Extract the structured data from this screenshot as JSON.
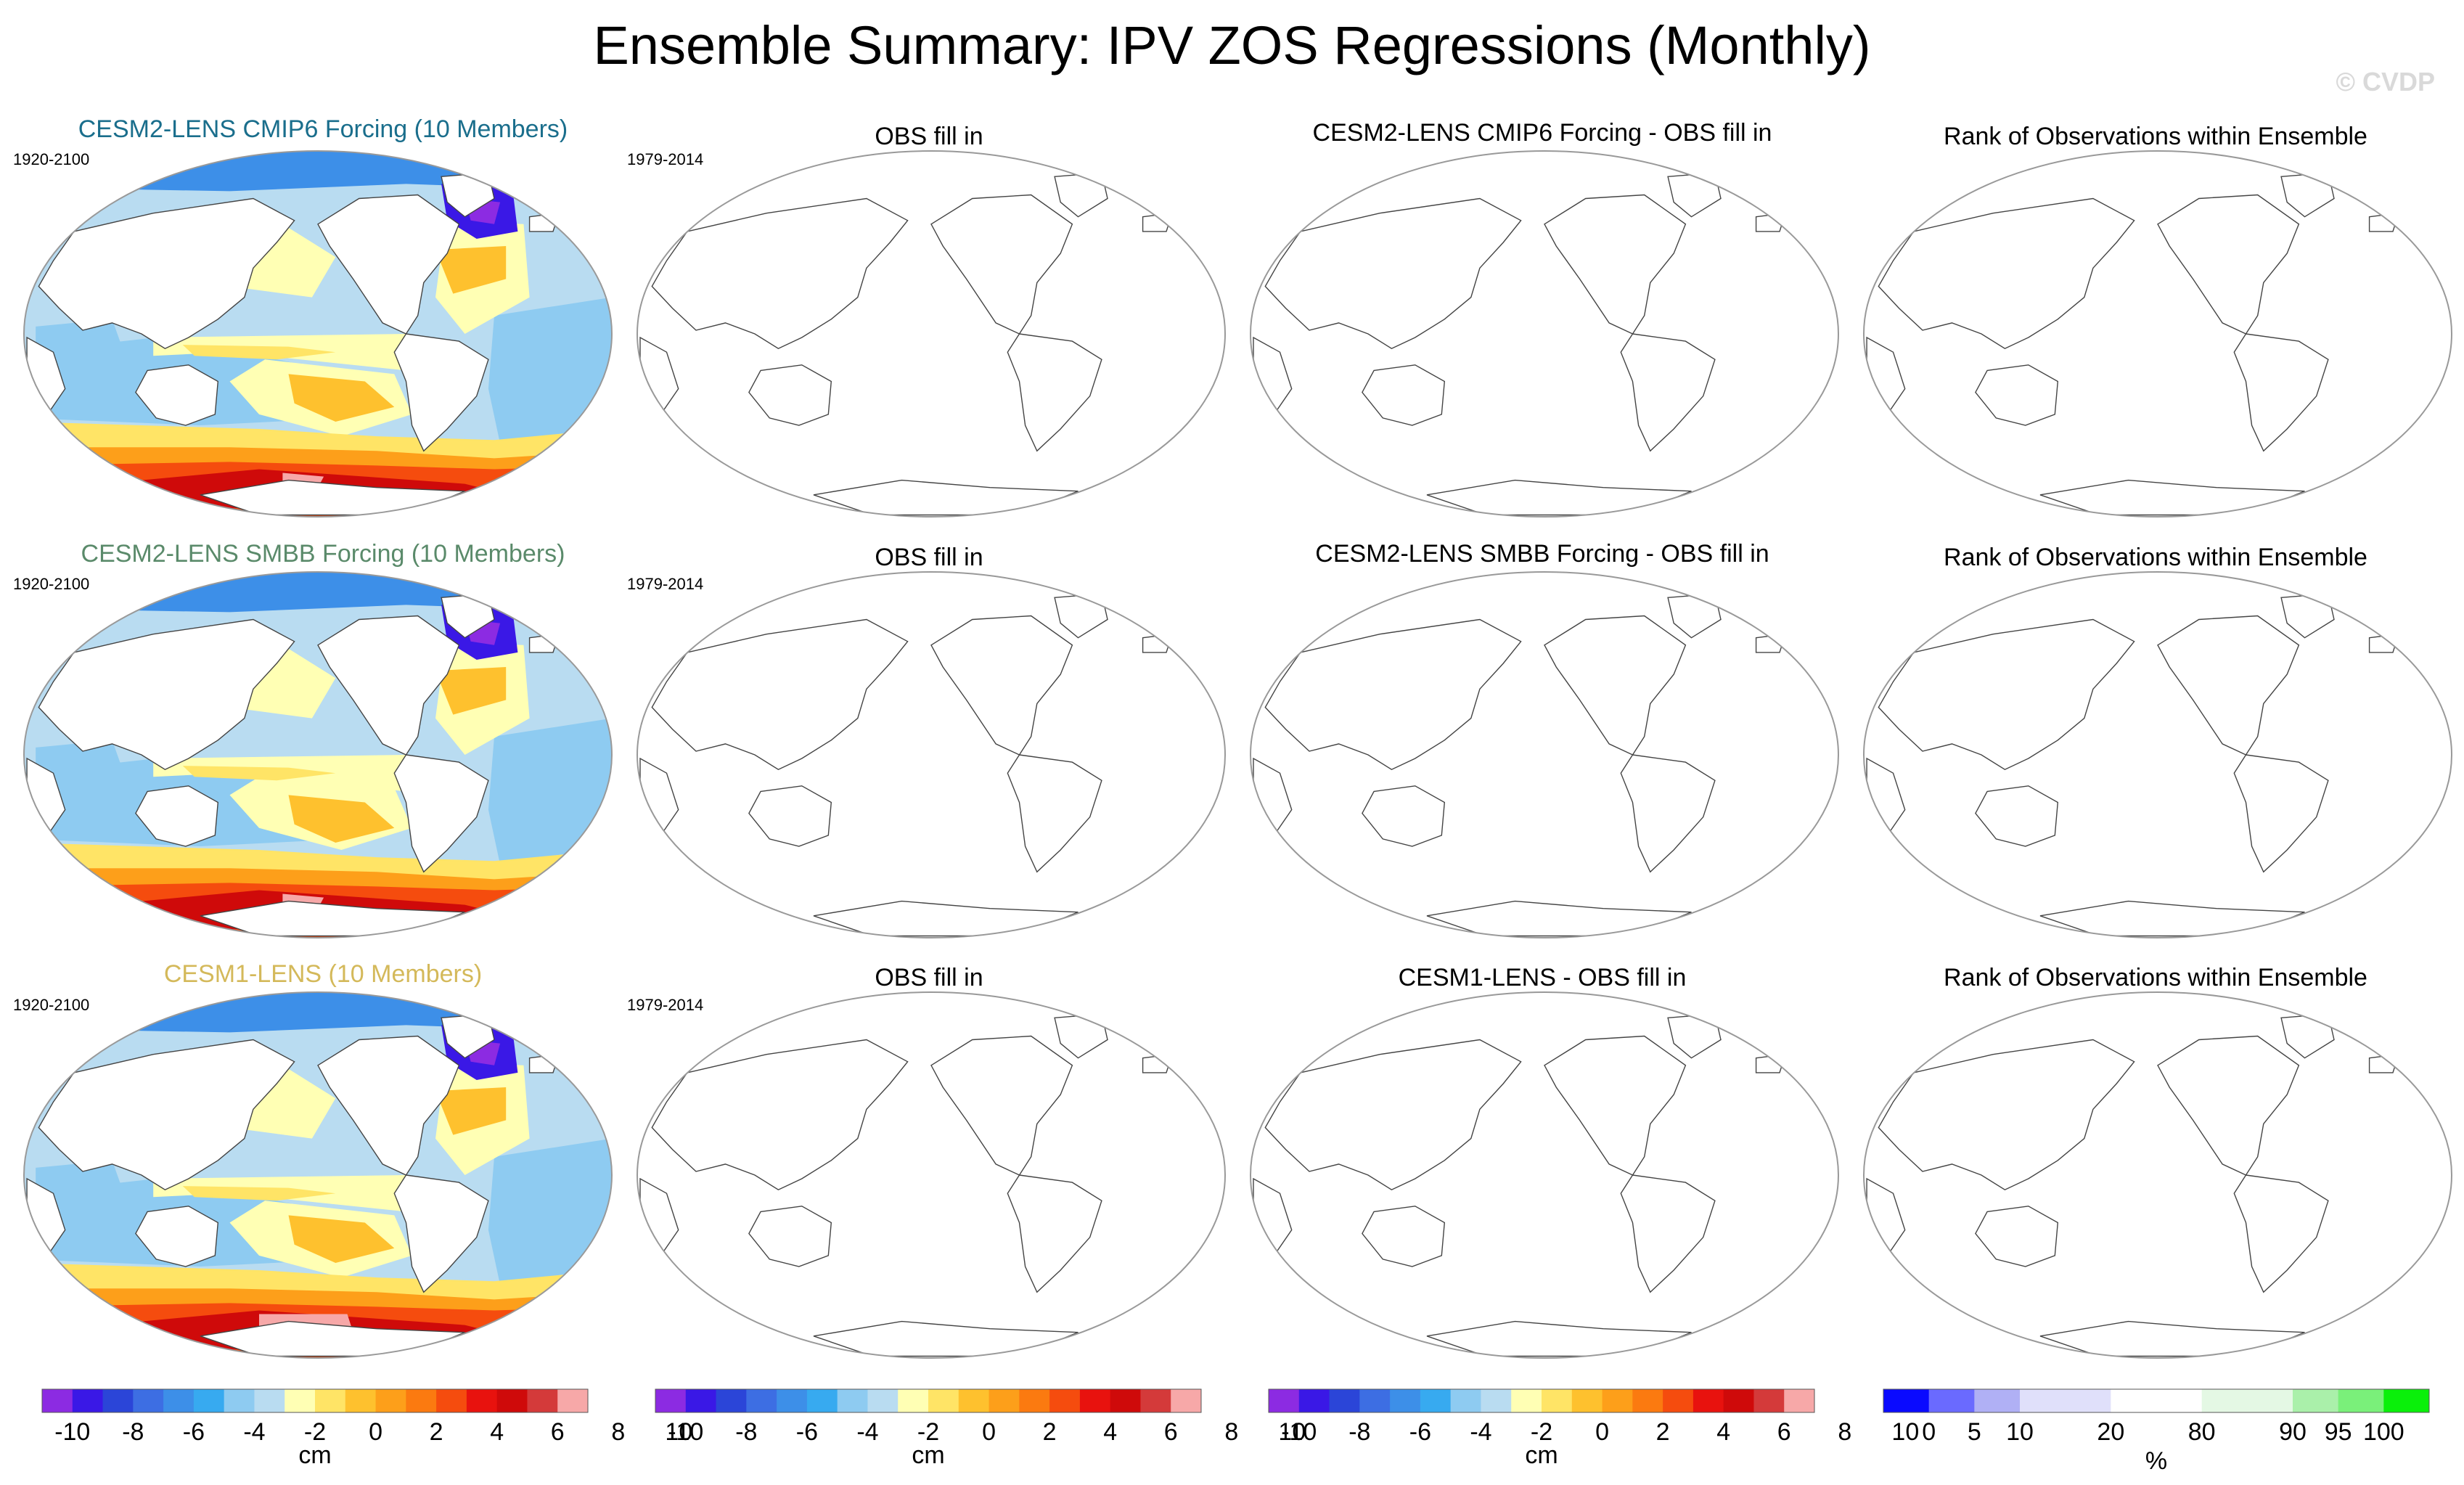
{
  "figure": {
    "title": "Ensemble Summary: IPV ZOS Regressions (Monthly)",
    "watermark": "© CVDP"
  },
  "chart_data": [
    {
      "type": "map",
      "row": 0,
      "col": 0,
      "title": "CESM2-LENS CMIP6 Forcing (10 Members)",
      "title_color": "#1a6e8c",
      "period": "1920-2100",
      "filled": true,
      "variant": 0
    },
    {
      "type": "map",
      "row": 0,
      "col": 1,
      "title": "OBS fill in",
      "period": "1979-2014",
      "filled": false
    },
    {
      "type": "map",
      "row": 0,
      "col": 2,
      "title": "CESM2-LENS CMIP6 Forcing - OBS fill in",
      "period": "",
      "filled": false
    },
    {
      "type": "map",
      "row": 0,
      "col": 3,
      "title": "Rank of Observations within Ensemble",
      "period": "",
      "filled": false
    },
    {
      "type": "map",
      "row": 1,
      "col": 0,
      "title": "CESM2-LENS SMBB Forcing (10 Members)",
      "title_color": "#5a8a6a",
      "period": "1920-2100",
      "filled": true,
      "variant": 1
    },
    {
      "type": "map",
      "row": 1,
      "col": 1,
      "title": "OBS fill in",
      "period": "1979-2014",
      "filled": false
    },
    {
      "type": "map",
      "row": 1,
      "col": 2,
      "title": "CESM2-LENS SMBB Forcing - OBS fill in",
      "period": "",
      "filled": false
    },
    {
      "type": "map",
      "row": 1,
      "col": 3,
      "title": "Rank of Observations within Ensemble",
      "period": "",
      "filled": false
    },
    {
      "type": "map",
      "row": 2,
      "col": 0,
      "title": "CESM1-LENS (10 Members)",
      "title_color": "#d4b95a",
      "period": "1920-2100",
      "filled": true,
      "variant": 2
    },
    {
      "type": "map",
      "row": 2,
      "col": 1,
      "title": "OBS fill in",
      "period": "1979-2014",
      "filled": false
    },
    {
      "type": "map",
      "row": 2,
      "col": 2,
      "title": "CESM1-LENS - OBS fill in",
      "period": "",
      "filled": false
    },
    {
      "type": "map",
      "row": 2,
      "col": 3,
      "title": "Rank of Observations within Ensemble",
      "period": "",
      "filled": false
    }
  ],
  "colorbars": [
    {
      "unit": "cm",
      "colors": [
        "#8c2be2",
        "#3a18e6",
        "#2b45d8",
        "#3d6ee3",
        "#3d8fe8",
        "#37aaf0",
        "#8ecbf1",
        "#b9dcf1",
        "#ffffb4",
        "#ffe466",
        "#fec12e",
        "#fd9f1a",
        "#fb7a10",
        "#f54c0e",
        "#e8120e",
        "#cf0a0a",
        "#d43a3a",
        "#f7a8a8"
      ],
      "ticks": [
        "-10",
        "-8",
        "-6",
        "-4",
        "-2",
        "0",
        "2",
        "4",
        "6",
        "8",
        "10"
      ]
    },
    {
      "unit": "cm",
      "colors": [
        "#8c2be2",
        "#3a18e6",
        "#2b45d8",
        "#3d6ee3",
        "#3d8fe8",
        "#37aaf0",
        "#8ecbf1",
        "#b9dcf1",
        "#ffffb4",
        "#ffe466",
        "#fec12e",
        "#fd9f1a",
        "#fb7a10",
        "#f54c0e",
        "#e8120e",
        "#cf0a0a",
        "#d43a3a",
        "#f7a8a8"
      ],
      "ticks": [
        "-10",
        "-8",
        "-6",
        "-4",
        "-2",
        "0",
        "2",
        "4",
        "6",
        "8",
        "10"
      ]
    },
    {
      "unit": "cm",
      "colors": [
        "#8c2be2",
        "#3a18e6",
        "#2b45d8",
        "#3d6ee3",
        "#3d8fe8",
        "#37aaf0",
        "#8ecbf1",
        "#b9dcf1",
        "#ffffb4",
        "#ffe466",
        "#fec12e",
        "#fd9f1a",
        "#fb7a10",
        "#f54c0e",
        "#e8120e",
        "#cf0a0a",
        "#d43a3a",
        "#f7a8a8"
      ],
      "ticks": [
        "-10",
        "-8",
        "-6",
        "-4",
        "-2",
        "0",
        "2",
        "4",
        "6",
        "8",
        "10"
      ]
    },
    {
      "unit": "%",
      "colors": [
        "#0a0aff",
        "#6a6aff",
        "#b0b0f5",
        "#e0e0fa",
        "#e0e0fa",
        "#ffffff",
        "#ffffff",
        "#e4f8e4",
        "#e4f8e4",
        "#aaf0aa",
        "#7af07a",
        "#0af00a"
      ],
      "ticks": [
        "0",
        "5",
        "10",
        "20",
        "80",
        "90",
        "95",
        "100"
      ]
    }
  ]
}
